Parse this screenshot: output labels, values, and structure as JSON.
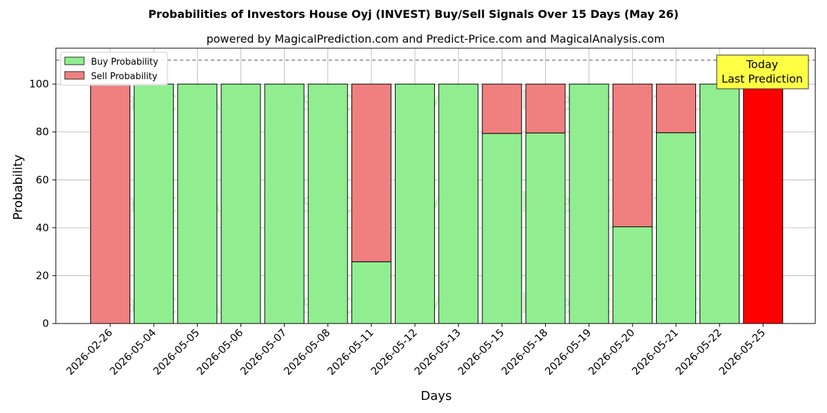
{
  "chart_data": {
    "type": "bar",
    "stacked": true,
    "title": "Probabilities of Investors House Oyj (INVEST) Buy/Sell Signals Over 15 Days (May 26)",
    "subtitle": "powered by MagicalPrediction.com and Predict-Price.com and MagicalAnalysis.com",
    "xlabel": "Days",
    "ylabel": "Probability",
    "ylim": [
      0,
      115
    ],
    "yticks": [
      0,
      20,
      40,
      60,
      80,
      100
    ],
    "reference_line": 110,
    "grid": true,
    "legend_position": "top-left",
    "categories": [
      "2026-02-26",
      "2026-05-04",
      "2026-05-05",
      "2026-05-06",
      "2026-05-07",
      "2026-05-08",
      "2026-05-11",
      "2026-05-12",
      "2026-05-13",
      "2026-05-15",
      "2026-05-18",
      "2026-05-19",
      "2026-05-20",
      "2026-05-21",
      "2026-05-22",
      "2026-05-25"
    ],
    "series": [
      {
        "name": "Buy Probability",
        "color": "#90ee90",
        "values": [
          0,
          100,
          100,
          100,
          100,
          100,
          25.8,
          100,
          100,
          79.4,
          79.6,
          100,
          40.4,
          79.7,
          100,
          0
        ]
      },
      {
        "name": "Sell Probability",
        "color": "#f08080",
        "values": [
          100,
          0,
          0,
          0,
          0,
          0,
          74.2,
          0,
          0,
          20.6,
          20.4,
          0,
          59.6,
          20.3,
          0,
          100
        ]
      }
    ],
    "highlight": {
      "index": 15,
      "color": "#ff0000",
      "label_line1": "Today",
      "label_line2": "Last Prediction",
      "box_color": "#ffff44"
    },
    "watermarks": [
      "MagicalAnalysis.com",
      "MagicalPrediction.com"
    ]
  }
}
